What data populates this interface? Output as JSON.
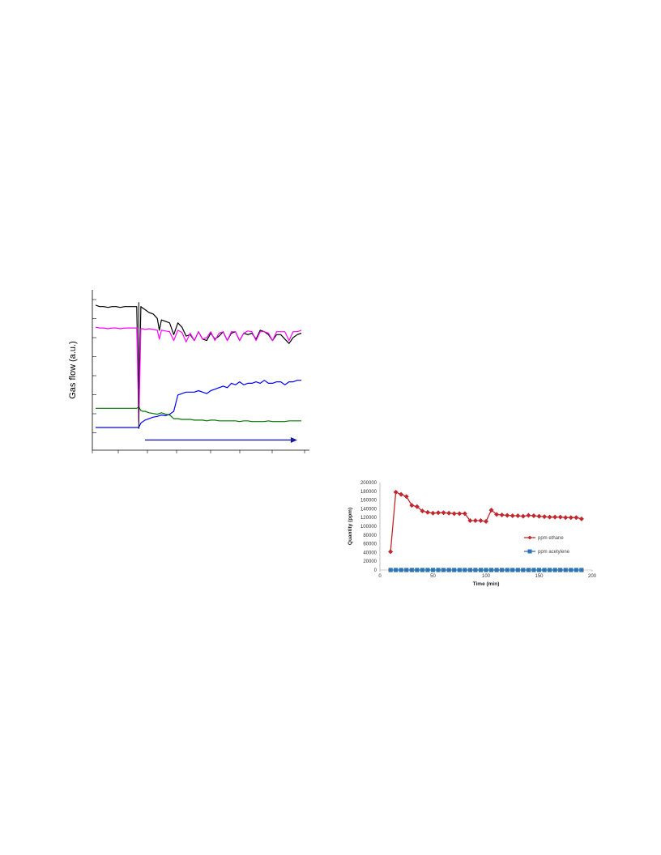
{
  "chart_data": [
    {
      "type": "line",
      "title": "",
      "xlabel": "",
      "ylabel": "Gas flow (a.u.)",
      "annotations": [
        "arrow"
      ],
      "x": [
        0,
        2,
        4,
        6,
        8,
        10,
        12,
        14,
        16,
        18,
        20,
        21,
        22,
        23,
        24,
        26,
        28,
        30,
        31,
        32,
        34,
        36,
        38,
        40,
        42,
        44,
        46,
        48,
        50,
        52,
        54,
        56,
        58,
        60,
        62,
        64,
        66,
        68,
        70,
        72,
        74,
        76,
        78,
        80,
        82,
        84,
        86,
        88,
        90,
        92,
        94,
        96,
        98,
        100
      ],
      "series": [
        {
          "color": "#000000",
          "values": [
            8.9,
            8.8,
            8.8,
            8.75,
            8.8,
            8.8,
            8.75,
            8.8,
            8.8,
            8.8,
            8.8,
            1.5,
            8.8,
            8.7,
            8.6,
            8.4,
            8.3,
            8.0,
            7.2,
            7.9,
            7.8,
            7.7,
            6.9,
            7.7,
            7.4,
            6.8,
            6.9,
            6.5,
            7.1,
            6.6,
            6.5,
            7.0,
            6.6,
            6.8,
            7.1,
            6.5,
            7.0,
            7.1,
            6.5,
            7.0,
            6.9,
            7.0,
            6.6,
            7.2,
            7.1,
            6.9,
            6.5,
            6.9,
            6.9,
            6.6,
            6.3,
            6.7,
            6.9,
            7.0
          ]
        },
        {
          "color": "#ff00ff",
          "values": [
            7.4,
            7.35,
            7.35,
            7.3,
            7.35,
            7.35,
            7.3,
            7.35,
            7.35,
            7.35,
            7.35,
            1.0,
            7.3,
            7.3,
            7.25,
            7.3,
            7.25,
            7.2,
            6.6,
            7.2,
            7.15,
            7.1,
            6.5,
            7.2,
            7.05,
            6.4,
            7.0,
            6.5,
            7.1,
            6.6,
            6.7,
            7.1,
            6.5,
            7.0,
            7.1,
            6.5,
            7.1,
            7.1,
            6.5,
            7.0,
            7.15,
            7.1,
            6.5,
            7.1,
            7.1,
            7.0,
            6.5,
            7.1,
            7.1,
            7.1,
            6.5,
            7.1,
            7.1,
            7.2
          ]
        },
        {
          "color": "#0000ff",
          "values": [
            0.6,
            0.6,
            0.6,
            0.6,
            0.6,
            0.6,
            0.6,
            0.6,
            0.6,
            0.6,
            0.6,
            0.6,
            0.9,
            1.0,
            1.1,
            1.2,
            1.3,
            1.35,
            1.4,
            1.45,
            1.4,
            1.5,
            1.7,
            2.8,
            2.9,
            3.0,
            3.0,
            3.0,
            3.1,
            3.0,
            2.9,
            3.1,
            3.2,
            3.3,
            3.4,
            3.3,
            3.6,
            3.5,
            3.7,
            3.5,
            3.6,
            3.6,
            3.7,
            3.6,
            3.8,
            3.6,
            3.6,
            3.7,
            3.7,
            3.5,
            3.7,
            3.7,
            3.8,
            3.8
          ]
        },
        {
          "color": "#007700",
          "values": [
            1.9,
            1.9,
            1.9,
            1.9,
            1.9,
            1.9,
            1.9,
            1.9,
            1.9,
            1.9,
            1.9,
            2.0,
            1.75,
            1.7,
            1.7,
            1.6,
            1.55,
            1.5,
            1.55,
            1.6,
            1.5,
            1.45,
            1.2,
            1.2,
            1.15,
            1.15,
            1.15,
            1.1,
            1.1,
            1.1,
            1.05,
            1.1,
            1.1,
            1.05,
            1.05,
            1.05,
            1.05,
            1.05,
            1.0,
            1.05,
            1.05,
            1.0,
            1.0,
            1.0,
            1.0,
            1.05,
            1.0,
            1.0,
            1.0,
            1.0,
            1.05,
            1.05,
            1.05,
            1.05
          ]
        }
      ]
    },
    {
      "type": "line",
      "title": "",
      "xlabel": "Time (min)",
      "ylabel": "Quantity (ppm)",
      "xlim": [
        0,
        200
      ],
      "ylim": [
        0,
        200000
      ],
      "xticks": [
        "0",
        "50",
        "100",
        "150",
        "200"
      ],
      "yticks": [
        "0",
        "20000",
        "40000",
        "60000",
        "80000",
        "100000",
        "120000",
        "140000",
        "160000",
        "180000",
        "200000"
      ],
      "legend_position": "right",
      "series": [
        {
          "name": "ppm ethane",
          "color": "#c0282d",
          "marker": "diamond",
          "x": [
            10,
            15,
            20,
            25,
            30,
            35,
            40,
            45,
            50,
            55,
            60,
            65,
            70,
            75,
            80,
            85,
            90,
            95,
            100,
            105,
            110,
            115,
            120,
            125,
            130,
            135,
            140,
            145,
            150,
            155,
            160,
            165,
            170,
            175,
            180,
            185,
            190
          ],
          "values": [
            42000,
            178000,
            173000,
            168000,
            148000,
            145000,
            135000,
            132000,
            130000,
            131000,
            131000,
            130000,
            129000,
            129000,
            129000,
            113000,
            113000,
            113000,
            111000,
            137000,
            127000,
            126000,
            125000,
            124000,
            124000,
            123000,
            125000,
            124000,
            123000,
            122000,
            121000,
            121000,
            121000,
            120000,
            120000,
            120000,
            117000
          ]
        },
        {
          "name": "ppm acetylene",
          "color": "#2e75b6",
          "marker": "square",
          "x": [
            10,
            15,
            20,
            25,
            30,
            35,
            40,
            45,
            50,
            55,
            60,
            65,
            70,
            75,
            80,
            85,
            90,
            95,
            100,
            105,
            110,
            115,
            120,
            125,
            130,
            135,
            140,
            145,
            150,
            155,
            160,
            165,
            170,
            175,
            180,
            185,
            190
          ],
          "values": [
            0,
            0,
            0,
            0,
            0,
            0,
            0,
            0,
            0,
            0,
            0,
            0,
            0,
            0,
            0,
            0,
            0,
            0,
            0,
            0,
            0,
            0,
            0,
            0,
            0,
            0,
            0,
            0,
            0,
            0,
            0,
            0,
            0,
            0,
            0,
            0,
            0
          ]
        }
      ]
    }
  ]
}
